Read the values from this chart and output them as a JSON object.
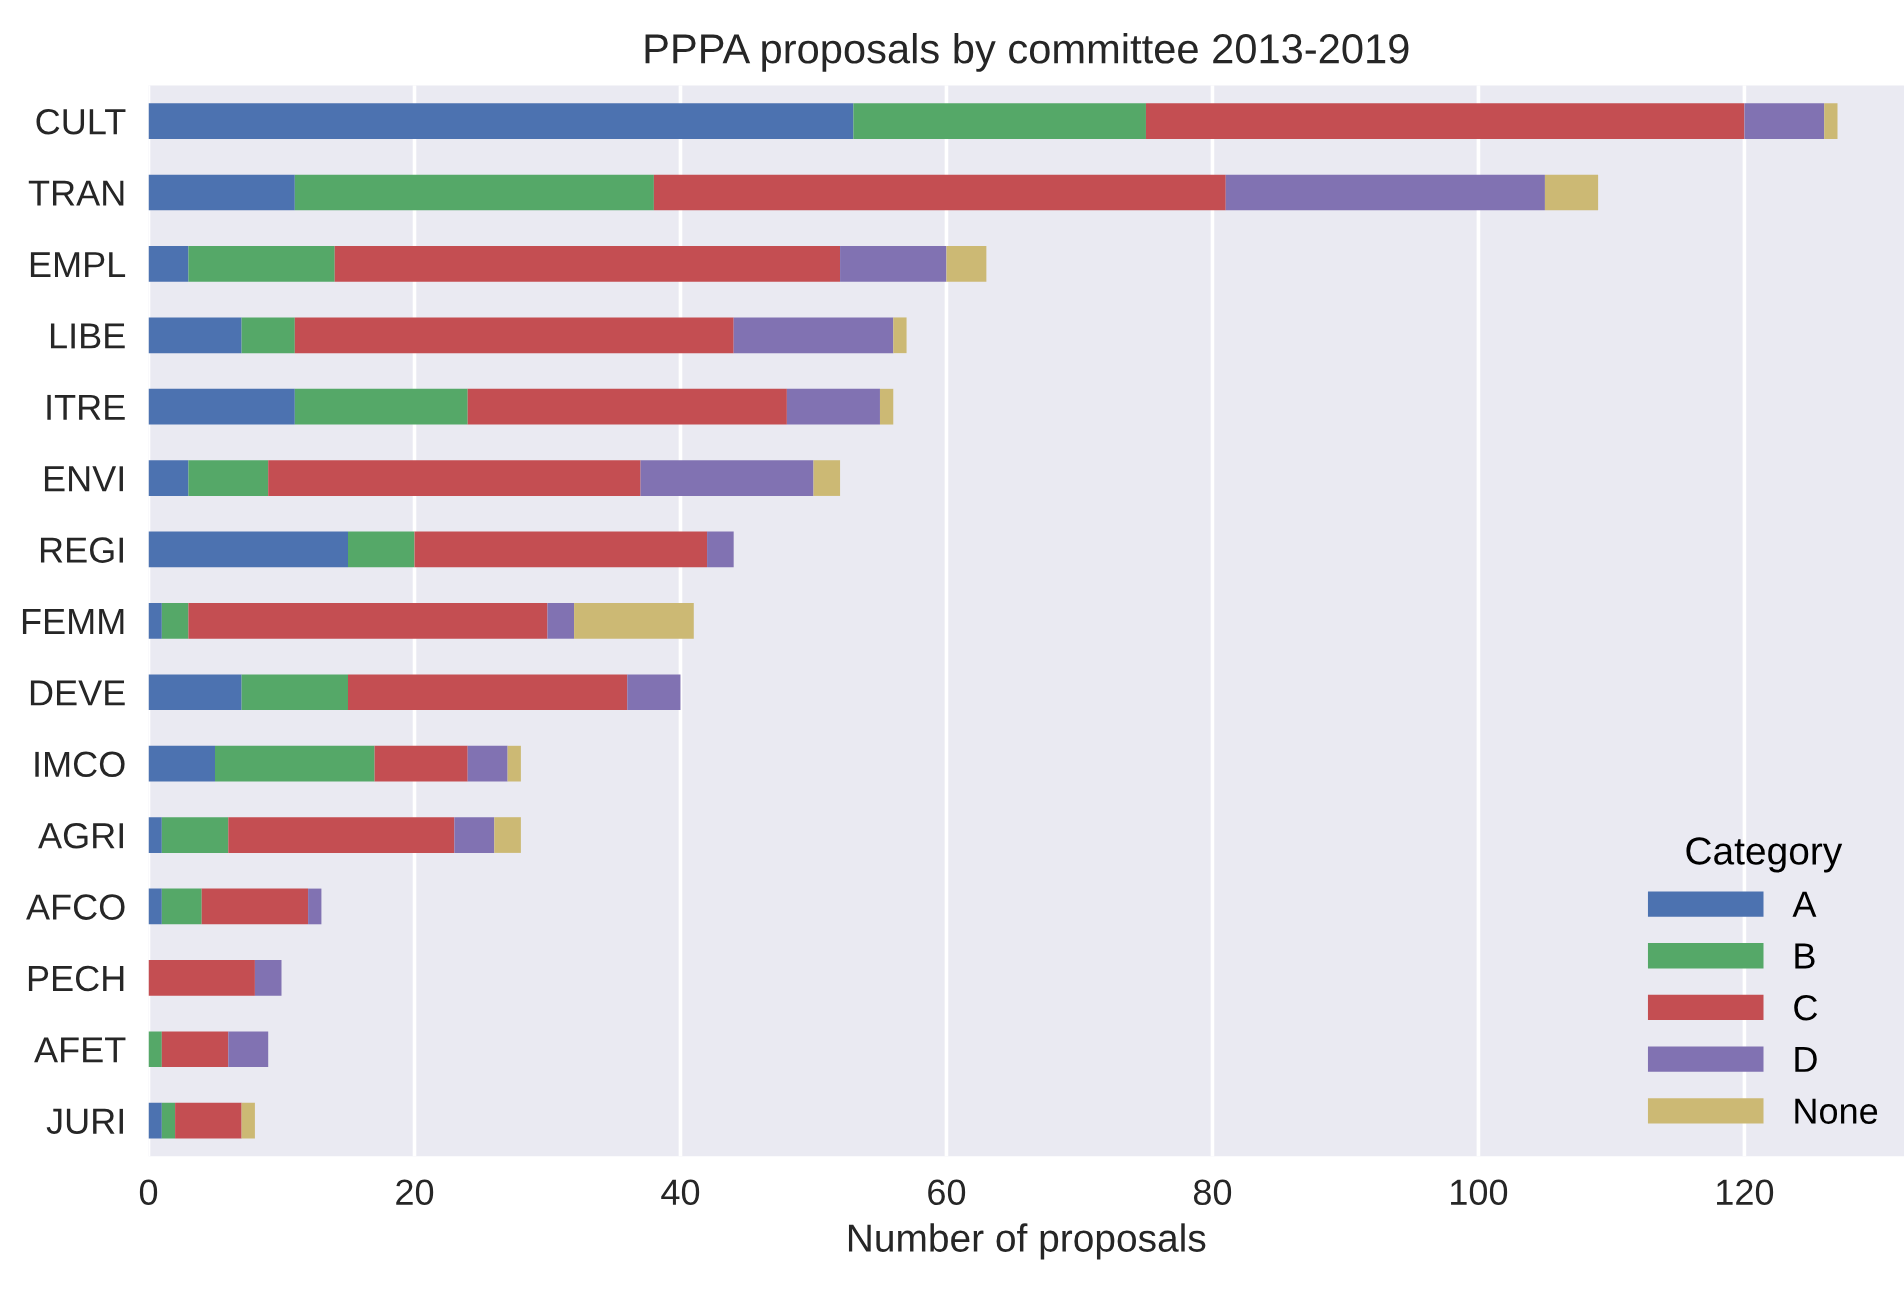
{
  "chart_data": {
    "type": "bar",
    "orientation": "horizontal",
    "stacked": true,
    "title": "PPPA proposals by committee 2013-2019",
    "xlabel": "Number of proposals",
    "legend_title": "Category",
    "legend": "bottom right",
    "grid": "x",
    "categories": [
      "CULT",
      "TRAN",
      "EMPL",
      "LIBE",
      "ITRE",
      "ENVI",
      "REGI",
      "FEMM",
      "DEVE",
      "IMCO",
      "AGRI",
      "AFCO",
      "PECH",
      "AFET",
      "JURI"
    ],
    "xlim": [
      0,
      132
    ],
    "xticks": [
      0,
      20,
      40,
      60,
      80,
      100,
      120
    ],
    "series": [
      {
        "name": "A",
        "color": "#4c72b0",
        "values": [
          53,
          11,
          3,
          7,
          11,
          3,
          15,
          1,
          7,
          5,
          1,
          1,
          0,
          0,
          1
        ]
      },
      {
        "name": "B",
        "color": "#55a868",
        "values": [
          22,
          27,
          11,
          4,
          13,
          6,
          5,
          2,
          8,
          12,
          5,
          3,
          0,
          1,
          1
        ]
      },
      {
        "name": "C",
        "color": "#c44e52",
        "values": [
          45,
          43,
          38,
          33,
          24,
          28,
          22,
          27,
          21,
          7,
          17,
          8,
          8,
          5,
          5
        ]
      },
      {
        "name": "D",
        "color": "#8172b2",
        "values": [
          6,
          24,
          8,
          12,
          7,
          13,
          2,
          2,
          4,
          3,
          3,
          1,
          2,
          3,
          0
        ]
      },
      {
        "name": "None",
        "color": "#ccb974",
        "values": [
          1,
          4,
          3,
          1,
          1,
          2,
          0,
          9,
          0,
          1,
          2,
          0,
          0,
          0,
          1
        ]
      }
    ]
  }
}
